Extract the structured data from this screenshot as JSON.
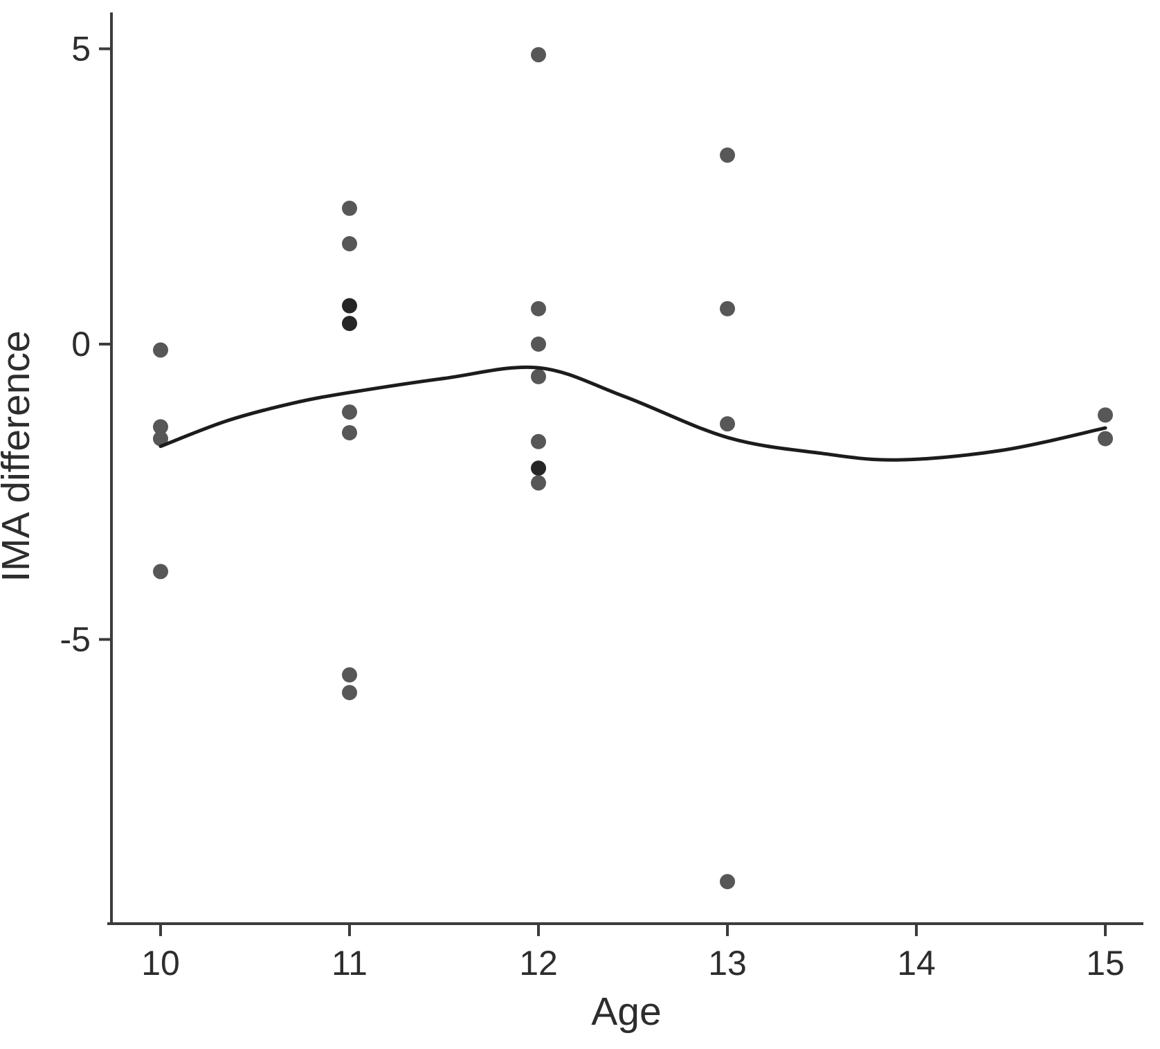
{
  "chart_data": {
    "type": "scatter",
    "title": "",
    "xlabel": "Age",
    "ylabel": "IMA difference",
    "x_ticks": [
      10,
      11,
      12,
      13,
      14,
      15
    ],
    "y_ticks": [
      5,
      0,
      -5
    ],
    "xlim": [
      9.7,
      15.3
    ],
    "ylim": [
      -9.8,
      5.6
    ],
    "grid": false,
    "legend": "none",
    "points": [
      {
        "age": 10,
        "value": -0.1
      },
      {
        "age": 10,
        "value": -1.4
      },
      {
        "age": 10,
        "value": -1.6
      },
      {
        "age": 10,
        "value": -3.85
      },
      {
        "age": 11,
        "value": 2.3
      },
      {
        "age": 11,
        "value": 1.7
      },
      {
        "age": 11,
        "value": 0.65,
        "overlap": true
      },
      {
        "age": 11,
        "value": 0.35,
        "overlap": true
      },
      {
        "age": 11,
        "value": -1.15
      },
      {
        "age": 11,
        "value": -1.5
      },
      {
        "age": 11,
        "value": -5.6
      },
      {
        "age": 11,
        "value": -5.9
      },
      {
        "age": 12,
        "value": 4.9
      },
      {
        "age": 12,
        "value": 0.6
      },
      {
        "age": 12,
        "value": 0.0
      },
      {
        "age": 12,
        "value": -0.55
      },
      {
        "age": 12,
        "value": -1.65
      },
      {
        "age": 12,
        "value": -2.1,
        "overlap": true
      },
      {
        "age": 12,
        "value": -2.35
      },
      {
        "age": 13,
        "value": 3.2
      },
      {
        "age": 13,
        "value": 0.6
      },
      {
        "age": 13,
        "value": -1.35
      },
      {
        "age": 13,
        "value": -9.1
      },
      {
        "age": 15,
        "value": -1.2
      },
      {
        "age": 15,
        "value": -1.6
      }
    ],
    "smooth_line": [
      {
        "age": 10.0,
        "value": -1.73
      },
      {
        "age": 10.35,
        "value": -1.3
      },
      {
        "age": 10.7,
        "value": -1.0
      },
      {
        "age": 11.0,
        "value": -0.82
      },
      {
        "age": 11.5,
        "value": -0.58
      },
      {
        "age": 12.0,
        "value": -0.4
      },
      {
        "age": 12.45,
        "value": -0.88
      },
      {
        "age": 13.0,
        "value": -1.58
      },
      {
        "age": 13.5,
        "value": -1.85
      },
      {
        "age": 13.9,
        "value": -1.96
      },
      {
        "age": 14.45,
        "value": -1.8
      },
      {
        "age": 15.0,
        "value": -1.42
      }
    ],
    "colors": {
      "point": "#575757",
      "point_overlap": "#262626",
      "line": "#1c1c1c",
      "axis": "#3c3c3c",
      "background": "#ffffff"
    }
  }
}
